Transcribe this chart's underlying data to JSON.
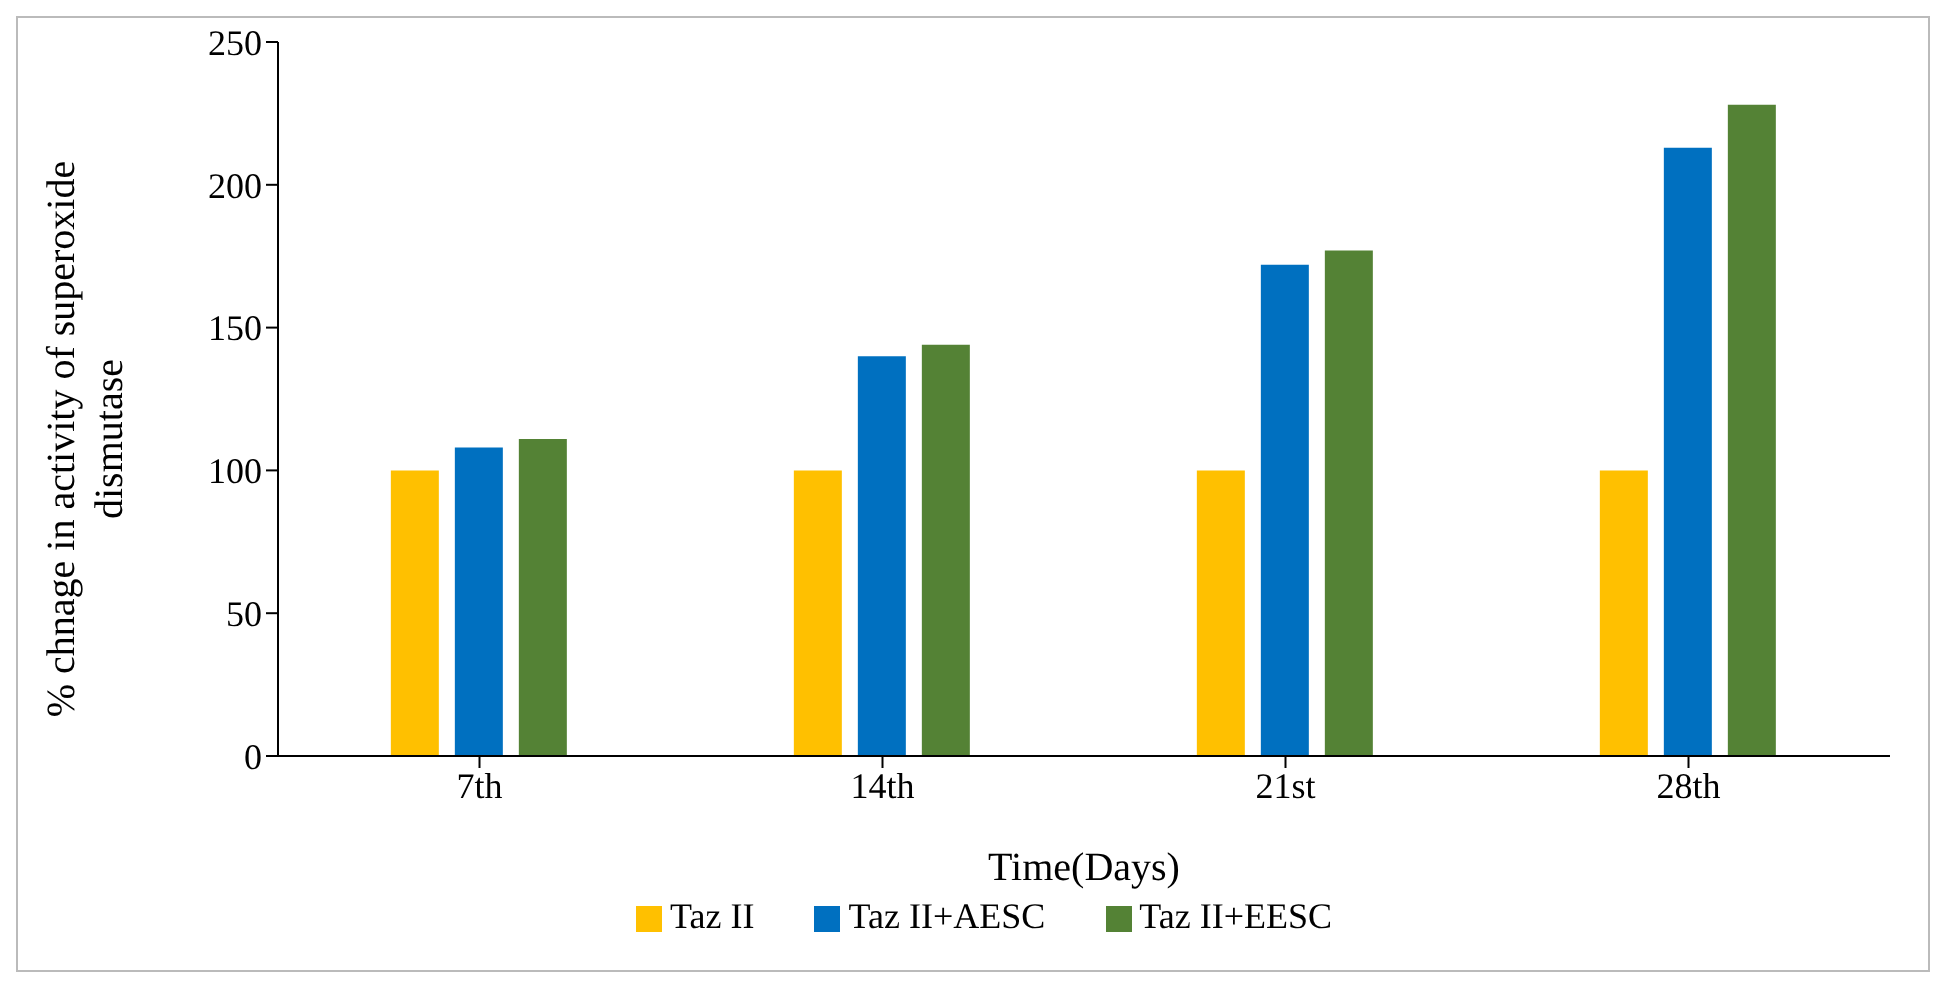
{
  "chart_data": {
    "type": "bar",
    "xlabel": "Time(Days)",
    "ylabel": "% chnage in activity of superoxide dismutase",
    "categories": [
      "7th",
      "14th",
      "21st",
      "28th"
    ],
    "series": [
      {
        "name": "Taz II",
        "color": "#ffc000",
        "values": [
          100,
          100,
          100,
          100
        ]
      },
      {
        "name": "Taz II+AESC",
        "color": "#0070c0",
        "values": [
          108,
          140,
          172,
          213
        ]
      },
      {
        "name": "Taz II+EESC",
        "color": "#548235",
        "values": [
          111,
          144,
          177,
          228
        ]
      }
    ],
    "ylim": [
      0,
      250
    ],
    "yticks": [
      0,
      50,
      100,
      150,
      200,
      250
    ],
    "grid": false,
    "legend": "bottom"
  }
}
